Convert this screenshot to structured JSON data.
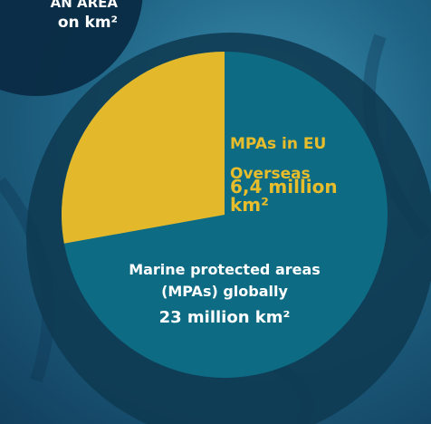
{
  "corner": {
    "line1": "AN AREA",
    "line2": "on km²"
  },
  "part": {
    "label": "MPAs in EU Overseas",
    "value": 6.4,
    "value_label": "6,4 million km²"
  },
  "total": {
    "label": "Marine protected areas (MPAs) globally",
    "value": 23,
    "value_label": "23 million km²"
  }
}
